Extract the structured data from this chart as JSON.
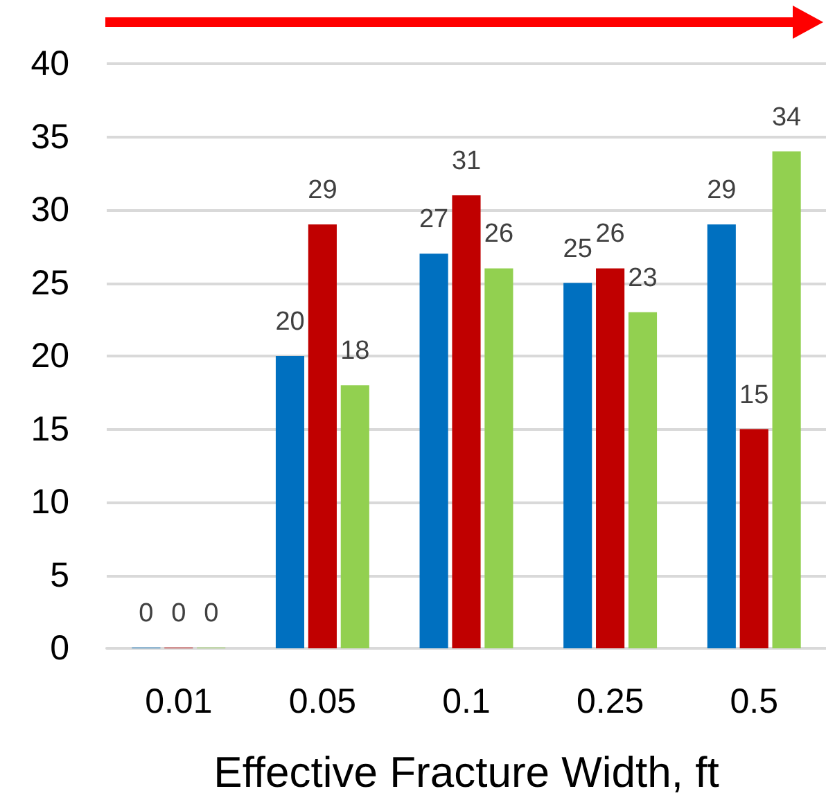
{
  "chart_data": {
    "type": "bar",
    "xlabel": "Effective Fracture Width, ft",
    "categories": [
      "0.01",
      "0.05",
      "0.1",
      "0.25",
      "0.5"
    ],
    "series": [
      {
        "color": "#0070c0",
        "values": [
          0,
          20,
          27,
          25,
          29
        ]
      },
      {
        "color": "#c00000",
        "values": [
          0,
          29,
          31,
          26,
          15
        ]
      },
      {
        "color": "#92d050",
        "values": [
          0,
          18,
          26,
          23,
          34
        ]
      }
    ],
    "ylim": [
      0,
      40
    ],
    "yticks": [
      0,
      5,
      10,
      15,
      20,
      25,
      30,
      35,
      40
    ],
    "grid": "y",
    "legend": false,
    "data_labels": true
  }
}
